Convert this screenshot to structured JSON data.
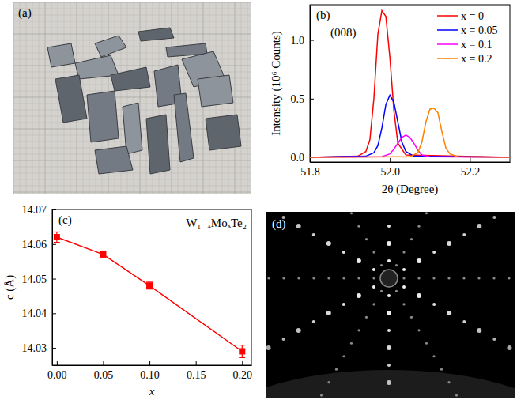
{
  "chart_data": [
    {
      "type": "image",
      "panel_label": "(a)"
    },
    {
      "type": "line",
      "panel_label": "(b)",
      "annotations": [
        "(008)"
      ],
      "x_label": "2θ (Degree)",
      "y_label": "Intensity (10⁶ Counts)",
      "xlim": [
        51.8,
        52.3
      ],
      "ylim": [
        -0.04,
        1.3
      ],
      "xticks": [
        51.8,
        {
          "value": 52,
          "label": "52.0"
        },
        52.2
      ],
      "yticks": [
        {
          "value": 0,
          "label": "0.0"
        },
        0.5,
        {
          "value": 1,
          "label": "1.0"
        }
      ],
      "legend": "top-right",
      "series": [
        {
          "name": "x = 0",
          "color": "#ff0000",
          "x": [
            51.8,
            51.92,
            51.94,
            51.95,
            51.96,
            51.97,
            51.98,
            51.99,
            52.0,
            52.01,
            52.02,
            52.04,
            52.3
          ],
          "values": [
            0,
            0.01,
            0.05,
            0.15,
            0.5,
            1.05,
            1.25,
            1.2,
            0.85,
            0.4,
            0.12,
            0.02,
            0
          ]
        },
        {
          "name": "x = 0.05",
          "color": "#0000ff",
          "x": [
            51.8,
            51.94,
            51.96,
            51.97,
            51.98,
            51.99,
            52.0,
            52.01,
            52.02,
            52.03,
            52.04,
            52.06,
            52.3
          ],
          "values": [
            0,
            0.01,
            0.04,
            0.1,
            0.25,
            0.45,
            0.53,
            0.47,
            0.3,
            0.13,
            0.05,
            0.01,
            0
          ]
        },
        {
          "name": "x = 0.1",
          "color": "#ff00ff",
          "x": [
            51.8,
            51.98,
            52.0,
            52.01,
            52.02,
            52.03,
            52.04,
            52.05,
            52.06,
            52.07,
            52.08,
            52.1,
            52.3
          ],
          "values": [
            0,
            0.005,
            0.03,
            0.07,
            0.12,
            0.17,
            0.19,
            0.17,
            0.12,
            0.06,
            0.02,
            0.005,
            0
          ]
        },
        {
          "name": "x = 0.2",
          "color": "#ff8000",
          "x": [
            51.8,
            52.05,
            52.07,
            52.08,
            52.09,
            52.1,
            52.11,
            52.12,
            52.13,
            52.14,
            52.15,
            52.17,
            52.3
          ],
          "values": [
            0,
            0.005,
            0.04,
            0.13,
            0.3,
            0.41,
            0.42,
            0.38,
            0.22,
            0.08,
            0.03,
            0.005,
            0
          ]
        }
      ]
    },
    {
      "type": "line",
      "panel_label": "(c)",
      "annotations": [
        "W₁₋ₓMoₓTe₂"
      ],
      "x_label": "x",
      "y_label": "c (Å)",
      "marker": "square",
      "color": "#ff0000",
      "x": [
        0,
        0.05,
        0.1,
        0.2
      ],
      "values": [
        14.062,
        14.057,
        14.048,
        14.029
      ],
      "errors": [
        0.0015,
        0.001,
        0.001,
        0.0018
      ],
      "xlim": [
        -0.005,
        0.21
      ],
      "ylim": [
        14.025,
        14.07
      ],
      "xticks": [
        {
          "value": 0,
          "label": "0.00"
        },
        {
          "value": 0.05,
          "label": "0.05"
        },
        {
          "value": 0.1,
          "label": "0.10"
        },
        {
          "value": 0.15,
          "label": "0.15"
        },
        {
          "value": 0.2,
          "label": "0.20"
        }
      ],
      "yticks": [
        14.03,
        14.04,
        14.05,
        14.06,
        14.07
      ]
    },
    {
      "type": "image",
      "panel_label": "(d)"
    }
  ]
}
